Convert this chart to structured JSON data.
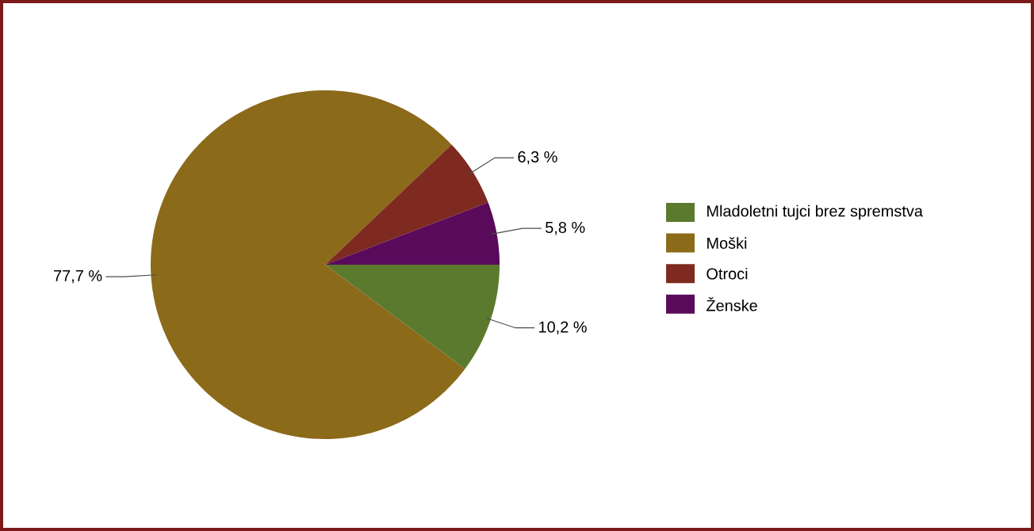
{
  "chart_data": {
    "type": "pie",
    "categories": [
      "Mladoletni tujci brez spremstva",
      "Moški",
      "Otroci",
      "Ženske"
    ],
    "values": [
      10.2,
      77.7,
      6.3,
      5.8
    ],
    "colors": [
      "#5b7a2e",
      "#8b6a1a",
      "#7e2a20",
      "#5a0a5a"
    ],
    "value_labels": [
      "10,2 %",
      "77,7 %",
      "6,3 %",
      "5,8 %"
    ],
    "legend": "right"
  }
}
